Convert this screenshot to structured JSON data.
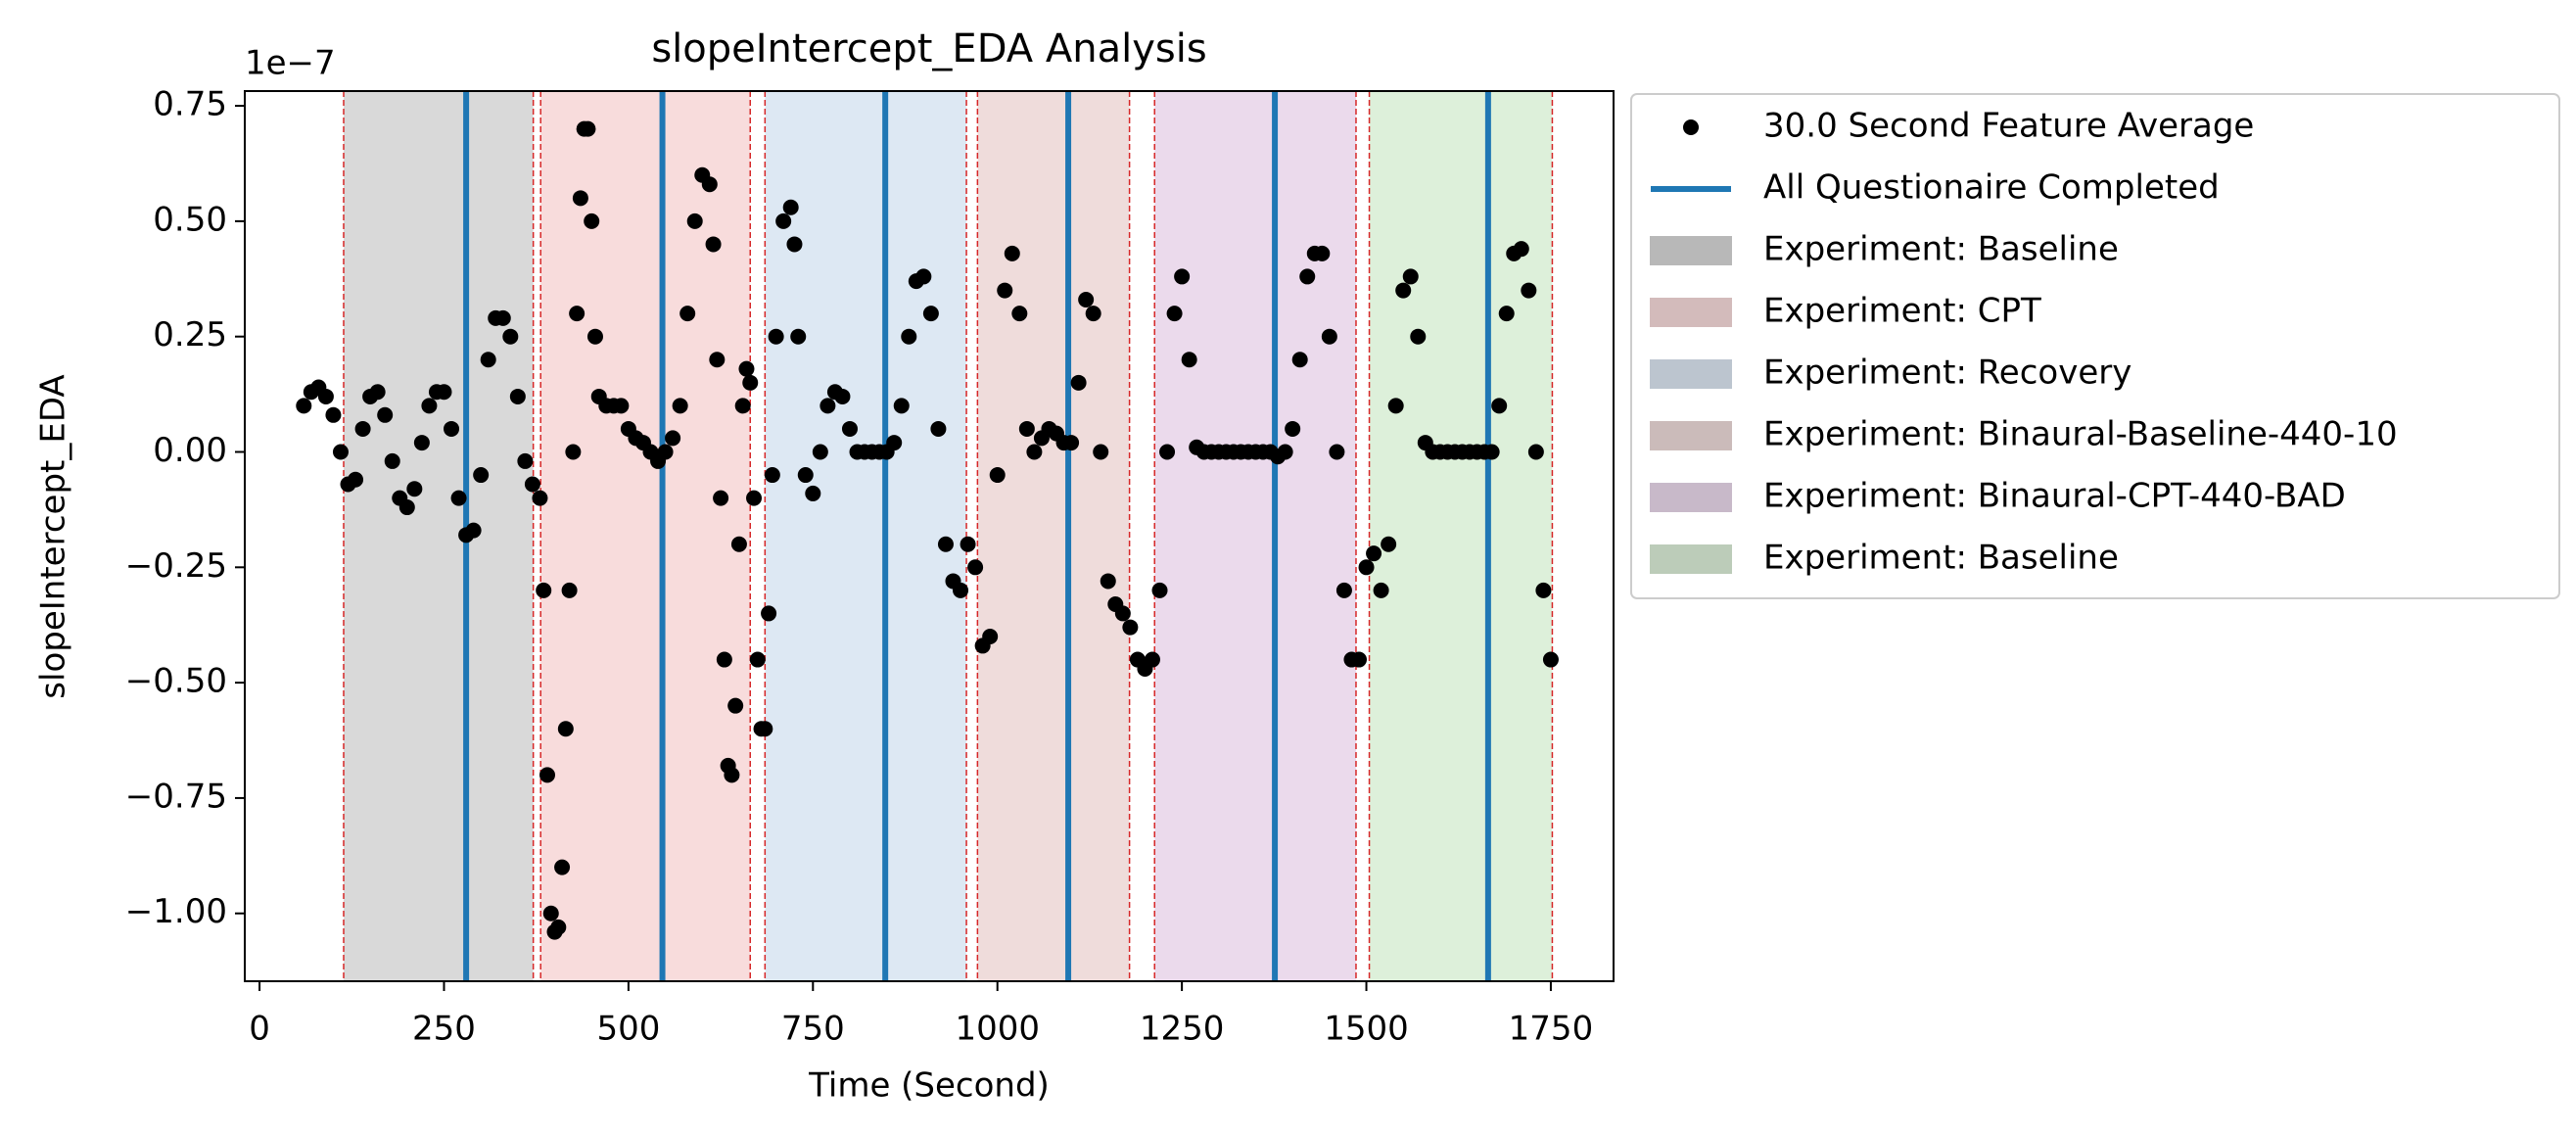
{
  "chart_data": {
    "type": "scatter",
    "title": "slopeIntercept_EDA Analysis",
    "x_label": "Time (Second)",
    "y_label": "slopeIntercept_EDA",
    "y_offset_label": "1e−7",
    "xlim": [
      -20,
      1835
    ],
    "ylim": [
      -1.147,
      0.782
    ],
    "xticks": [
      0,
      250,
      500,
      750,
      1000,
      1250,
      1500,
      1750
    ],
    "yticks": [
      {
        "value": 0.75,
        "label": "0.75"
      },
      {
        "value": 0.5,
        "label": "0.50"
      },
      {
        "value": 0.25,
        "label": "0.25"
      },
      {
        "value": 0,
        "label": "0.00"
      },
      {
        "value": -0.25,
        "label": "−0.25"
      },
      {
        "value": -0.5,
        "label": "−0.50"
      },
      {
        "value": -0.75,
        "label": "−0.75"
      },
      {
        "value": -1,
        "label": "−1.00"
      }
    ],
    "series": [
      {
        "name": "30.0 Second Feature Average",
        "color": "#000000",
        "x": [
          60,
          70,
          80,
          90,
          100,
          110,
          120,
          130,
          140,
          150,
          160,
          170,
          180,
          190,
          200,
          210,
          220,
          230,
          240,
          250,
          260,
          270,
          280,
          290,
          300,
          310,
          320,
          330,
          340,
          350,
          360,
          370,
          380,
          385,
          390,
          395,
          400,
          405,
          410,
          415,
          420,
          425,
          430,
          435,
          440,
          445,
          450,
          455,
          460,
          470,
          480,
          490,
          500,
          510,
          520,
          530,
          540,
          550,
          560,
          570,
          580,
          590,
          600,
          610,
          615,
          620,
          625,
          630,
          635,
          640,
          645,
          650,
          655,
          660,
          665,
          670,
          675,
          680,
          685,
          690,
          695,
          700,
          710,
          720,
          725,
          730,
          740,
          750,
          760,
          770,
          780,
          790,
          800,
          810,
          820,
          830,
          840,
          850,
          860,
          870,
          880,
          890,
          900,
          910,
          920,
          930,
          940,
          950,
          960,
          970,
          980,
          990,
          1000,
          1010,
          1020,
          1030,
          1040,
          1050,
          1060,
          1070,
          1080,
          1090,
          1100,
          1110,
          1120,
          1130,
          1140,
          1150,
          1160,
          1170,
          1180,
          1190,
          1200,
          1210,
          1220,
          1230,
          1240,
          1250,
          1260,
          1270,
          1280,
          1290,
          1300,
          1310,
          1320,
          1330,
          1340,
          1350,
          1360,
          1370,
          1380,
          1390,
          1400,
          1410,
          1420,
          1430,
          1440,
          1450,
          1460,
          1470,
          1480,
          1490,
          1500,
          1510,
          1520,
          1530,
          1540,
          1550,
          1560,
          1570,
          1580,
          1590,
          1600,
          1610,
          1620,
          1630,
          1640,
          1650,
          1660,
          1670,
          1680,
          1690,
          1700,
          1710,
          1720,
          1730,
          1740,
          1750
        ],
        "values": [
          0.1,
          0.13,
          0.14,
          0.12,
          0.08,
          0.0,
          -0.07,
          -0.06,
          0.05,
          0.12,
          0.13,
          0.08,
          -0.02,
          -0.1,
          -0.12,
          -0.08,
          0.02,
          0.1,
          0.13,
          0.13,
          0.05,
          -0.1,
          -0.18,
          -0.17,
          -0.05,
          0.2,
          0.29,
          0.29,
          0.25,
          0.12,
          -0.02,
          -0.07,
          -0.1,
          -0.3,
          -0.7,
          -1.0,
          -1.04,
          -1.03,
          -0.9,
          -0.6,
          -0.3,
          0.0,
          0.3,
          0.55,
          0.7,
          0.7,
          0.5,
          0.25,
          0.12,
          0.1,
          0.1,
          0.1,
          0.05,
          0.03,
          0.02,
          0.0,
          -0.02,
          0.0,
          0.03,
          0.1,
          0.3,
          0.5,
          0.6,
          0.58,
          0.45,
          0.2,
          -0.1,
          -0.45,
          -0.68,
          -0.7,
          -0.55,
          -0.2,
          0.1,
          0.18,
          0.15,
          -0.1,
          -0.45,
          -0.6,
          -0.6,
          -0.35,
          -0.05,
          0.25,
          0.5,
          0.53,
          0.45,
          0.25,
          -0.05,
          -0.09,
          0.0,
          0.1,
          0.13,
          0.12,
          0.05,
          0.0,
          0.0,
          0.0,
          0.0,
          0.0,
          0.02,
          0.1,
          0.25,
          0.37,
          0.38,
          0.3,
          0.05,
          -0.2,
          -0.28,
          -0.3,
          -0.2,
          -0.25,
          -0.42,
          -0.4,
          -0.05,
          0.35,
          0.43,
          0.3,
          0.05,
          0.0,
          0.03,
          0.05,
          0.04,
          0.02,
          0.02,
          0.15,
          0.33,
          0.3,
          0.0,
          -0.28,
          -0.33,
          -0.35,
          -0.38,
          -0.45,
          -0.47,
          -0.45,
          -0.3,
          0.0,
          0.3,
          0.38,
          0.2,
          0.01,
          0.0,
          0.0,
          0.0,
          0.0,
          0.0,
          0.0,
          0.0,
          0.0,
          0.0,
          0.0,
          -0.01,
          0.0,
          0.05,
          0.2,
          0.38,
          0.43,
          0.43,
          0.25,
          0.0,
          -0.3,
          -0.45,
          -0.45,
          -0.25,
          -0.22,
          -0.3,
          -0.2,
          0.1,
          0.35,
          0.38,
          0.25,
          0.02,
          0.0,
          0.0,
          0.0,
          0.0,
          0.0,
          0.0,
          0.0,
          0.0,
          0.0,
          0.1,
          0.3,
          0.43,
          0.44,
          0.35,
          0.0,
          -0.3,
          -0.45
        ]
      }
    ],
    "vlines": {
      "name": "All Questionaire Completed",
      "color": "#1f77b4",
      "x": [
        280,
        546,
        848,
        1096,
        1376,
        1665
      ]
    },
    "span_edge_color": "#d62728",
    "spans": [
      {
        "name": "Experiment: Baseline",
        "color": "#d9d9d9",
        "start": 114,
        "end": 371
      },
      {
        "name": "Experiment: CPT",
        "color": "#f8dcdc",
        "start": 381,
        "end": 665
      },
      {
        "name": "Experiment: Recovery",
        "color": "#dde8f3",
        "start": 685,
        "end": 958
      },
      {
        "name": "Experiment: Binaural-Baseline-440-10",
        "color": "#efdcdb",
        "start": 973,
        "end": 1179
      },
      {
        "name": "Experiment: Binaural-CPT-440-BAD",
        "color": "#ebdaec",
        "start": 1213,
        "end": 1486
      },
      {
        "name": "Experiment: Baseline",
        "color": "#ddf0da",
        "start": 1504,
        "end": 1752
      }
    ]
  }
}
